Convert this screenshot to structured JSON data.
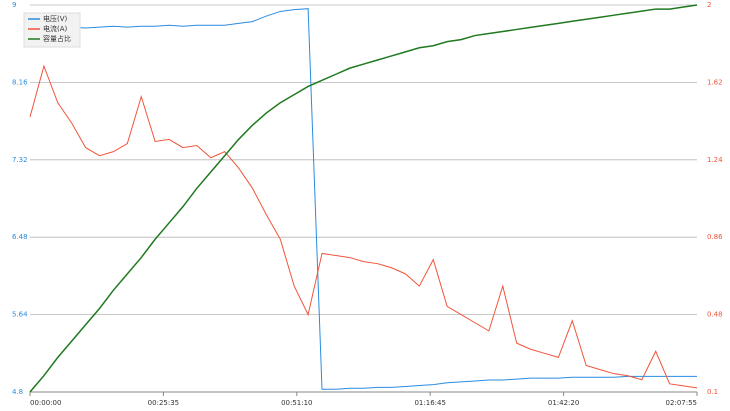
{
  "chart_data": {
    "type": "line",
    "x": [
      0,
      160,
      320,
      480,
      640,
      800,
      960,
      1120,
      1280,
      1440,
      1600,
      1760,
      1920,
      2080,
      2240,
      2400,
      2560,
      2720,
      2880,
      3040,
      3200,
      3360,
      3520,
      3680,
      3840,
      4000,
      4160,
      4320,
      4480,
      4640,
      4800,
      4960,
      5120,
      5280,
      5440,
      5600,
      5760,
      5920,
      6080,
      6240,
      6400,
      6560,
      6720,
      6880,
      7040,
      7200,
      7360,
      7520,
      7675
    ],
    "xlim": [
      0,
      7675
    ],
    "xticks": [
      {
        "value": 0,
        "label": "00:00:00"
      },
      {
        "value": 1535,
        "label": "00:25:35"
      },
      {
        "value": 3070,
        "label": "00:51:10"
      },
      {
        "value": 4605,
        "label": "01:16:45"
      },
      {
        "value": 6140,
        "label": "01:42:20"
      },
      {
        "value": 7675,
        "label": "02:07:55"
      }
    ],
    "ylim": [
      4.8,
      9
    ],
    "yticks": [
      4.8,
      5.64,
      6.48,
      7.32,
      8.16,
      9
    ],
    "y2lim": [
      0.1,
      2
    ],
    "y2ticks": [
      0.1,
      0.48,
      0.86,
      1.24,
      1.62,
      2
    ],
    "grid": true,
    "legend": "top-left",
    "series": [
      {
        "name": "电压(V)",
        "color": "#2a8ce0",
        "values": [
          8.75,
          8.74,
          8.75,
          8.76,
          8.75,
          8.76,
          8.77,
          8.76,
          8.77,
          8.77,
          8.78,
          8.77,
          8.78,
          8.78,
          8.78,
          8.8,
          8.82,
          8.88,
          8.93,
          8.95,
          8.96,
          4.83,
          4.83,
          4.84,
          4.84,
          4.85,
          4.85,
          4.86,
          4.87,
          4.88,
          4.9,
          4.91,
          4.92,
          4.93,
          4.93,
          4.94,
          4.95,
          4.95,
          4.95,
          4.96,
          4.96,
          4.96,
          4.96,
          4.97,
          4.97,
          4.97,
          4.97,
          4.97,
          4.97
        ]
      },
      {
        "name": "电流(A)",
        "color": "#f0553a",
        "axis": "y2",
        "values": [
          1.45,
          1.7,
          1.52,
          1.42,
          1.3,
          1.26,
          1.28,
          1.32,
          1.55,
          1.33,
          1.34,
          1.3,
          1.31,
          1.25,
          1.28,
          1.2,
          1.1,
          0.97,
          0.85,
          0.62,
          0.48,
          0.78,
          0.77,
          0.76,
          0.74,
          0.73,
          0.71,
          0.68,
          0.62,
          0.75,
          0.52,
          0.48,
          0.44,
          0.4,
          0.62,
          0.34,
          0.31,
          0.29,
          0.27,
          0.45,
          0.23,
          0.21,
          0.19,
          0.18,
          0.16,
          0.3,
          0.14,
          0.13,
          0.12
        ]
      },
      {
        "name": "容量占比",
        "color": "#1f7a1f",
        "axis": "y2",
        "values": [
          0.1,
          0.18,
          0.27,
          0.35,
          0.43,
          0.51,
          0.6,
          0.68,
          0.76,
          0.85,
          0.93,
          1.01,
          1.1,
          1.18,
          1.26,
          1.34,
          1.41,
          1.47,
          1.52,
          1.56,
          1.6,
          1.63,
          1.66,
          1.69,
          1.71,
          1.73,
          1.75,
          1.77,
          1.79,
          1.8,
          1.82,
          1.83,
          1.85,
          1.86,
          1.87,
          1.88,
          1.89,
          1.9,
          1.91,
          1.92,
          1.93,
          1.94,
          1.95,
          1.96,
          1.97,
          1.98,
          1.98,
          1.99,
          2
        ]
      }
    ]
  }
}
